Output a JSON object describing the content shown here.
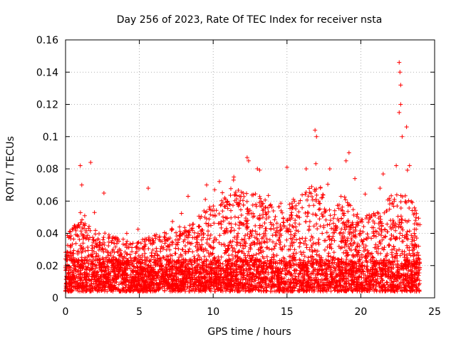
{
  "chart_data": {
    "type": "scatter",
    "title": "Day 256 of 2023, Rate Of TEC Index for receiver nsta",
    "xlabel": "GPS time / hours",
    "ylabel": "ROTI / TECUs",
    "xlim": [
      0,
      25
    ],
    "ylim": [
      0,
      0.16
    ],
    "x_ticks": [
      0,
      5,
      10,
      15,
      20,
      25
    ],
    "x_tick_labels": [
      "0",
      "5",
      "10",
      "15",
      "20",
      "25"
    ],
    "y_ticks": [
      0,
      0.02,
      0.04,
      0.06,
      0.08,
      0.1,
      0.12,
      0.14,
      0.16
    ],
    "y_tick_labels": [
      "0",
      "0.02",
      "0.04",
      "0.06",
      "0.08",
      "0.1",
      "0.12",
      "0.14",
      "0.16"
    ],
    "grid": true,
    "marker": "+",
    "marker_color": "#ff0000",
    "series": [
      {
        "name": "ROTI",
        "profile_hours": [
          0,
          1,
          2,
          3,
          4,
          5,
          6,
          7,
          8,
          9,
          10,
          11,
          12,
          13,
          14,
          15,
          16,
          17,
          18,
          19,
          20,
          21,
          22,
          23,
          24
        ],
        "profile_typical_max": [
          0.035,
          0.045,
          0.04,
          0.035,
          0.032,
          0.032,
          0.035,
          0.04,
          0.04,
          0.045,
          0.055,
          0.06,
          0.065,
          0.06,
          0.06,
          0.055,
          0.06,
          0.07,
          0.05,
          0.06,
          0.045,
          0.05,
          0.06,
          0.06,
          0.05
        ],
        "peaks": [
          {
            "x": 1.0,
            "y": 0.082
          },
          {
            "x": 1.1,
            "y": 0.07
          },
          {
            "x": 1.7,
            "y": 0.084
          },
          {
            "x": 2.6,
            "y": 0.065
          },
          {
            "x": 5.6,
            "y": 0.068
          },
          {
            "x": 8.3,
            "y": 0.063
          },
          {
            "x": 10.1,
            "y": 0.067
          },
          {
            "x": 11.4,
            "y": 0.075
          },
          {
            "x": 12.3,
            "y": 0.087
          },
          {
            "x": 12.4,
            "y": 0.085
          },
          {
            "x": 15.0,
            "y": 0.081
          },
          {
            "x": 16.3,
            "y": 0.08
          },
          {
            "x": 16.9,
            "y": 0.104
          },
          {
            "x": 17.0,
            "y": 0.1
          },
          {
            "x": 17.9,
            "y": 0.08
          },
          {
            "x": 19.0,
            "y": 0.085
          },
          {
            "x": 19.2,
            "y": 0.09
          },
          {
            "x": 19.6,
            "y": 0.074
          },
          {
            "x": 21.3,
            "y": 0.068
          },
          {
            "x": 22.4,
            "y": 0.082
          },
          {
            "x": 22.6,
            "y": 0.146
          },
          {
            "x": 22.65,
            "y": 0.14
          },
          {
            "x": 22.7,
            "y": 0.132
          },
          {
            "x": 22.7,
            "y": 0.12
          },
          {
            "x": 22.6,
            "y": 0.115
          },
          {
            "x": 22.8,
            "y": 0.1
          },
          {
            "x": 23.1,
            "y": 0.106
          },
          {
            "x": 23.3,
            "y": 0.082
          }
        ]
      }
    ]
  }
}
